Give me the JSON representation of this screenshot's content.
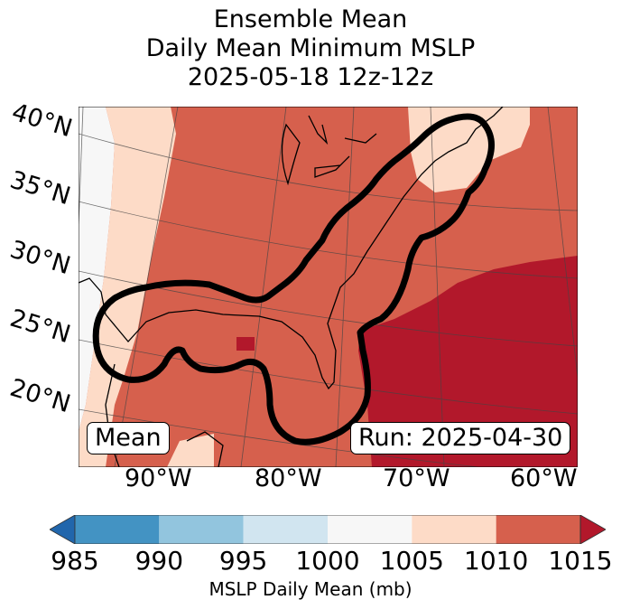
{
  "title": {
    "line1": "Ensemble Mean",
    "line2": "Daily Mean Minimum MSLP",
    "line3": "2025-05-18 12z-12z"
  },
  "map": {
    "lat_labels": [
      "40°N",
      "35°N",
      "30°N",
      "25°N",
      "20°N"
    ],
    "lon_labels": [
      "90°W",
      "80°W",
      "70°W",
      "60°W"
    ],
    "mean_label": "Mean",
    "run_label": "Run: 2025-04-30",
    "contour_color": "#000000",
    "region_description": "Eastern United States, Gulf of Mexico and western Atlantic; thick black contour outlines Gulf Coast and East Coast corridor"
  },
  "colorbar": {
    "label": "MSLP Daily Mean (mb)",
    "ticks": [
      "985",
      "990",
      "995",
      "1000",
      "1005",
      "1010",
      "1015"
    ],
    "bins": [
      {
        "range": "<985",
        "color": "#2166ac"
      },
      {
        "range": "985-990",
        "color": "#4393c3"
      },
      {
        "range": "990-995",
        "color": "#92c5de"
      },
      {
        "range": "995-1000",
        "color": "#d1e5f0"
      },
      {
        "range": "1000-1005",
        "color": "#f7f7f7"
      },
      {
        "range": "1005-1010",
        "color": "#fddbc7"
      },
      {
        "range": "1010-1015",
        "color": "#d6604d"
      },
      {
        "range": ">1015",
        "color": "#b2182b"
      }
    ]
  },
  "chart_data": {
    "type": "heatmap",
    "title": "Ensemble Mean / Daily Mean Minimum MSLP / 2025-05-18 12z-12z",
    "colorbar_label": "MSLP Daily Mean (mb)",
    "levels": [
      985,
      990,
      995,
      1000,
      1005,
      1010,
      1015
    ],
    "extend": "both",
    "regions": [
      {
        "area": "far west (Plains / west Texas)",
        "range": "1000-1005"
      },
      {
        "area": "western band",
        "range": "1005-1010"
      },
      {
        "area": "central & eastern US, Gulf of Mexico",
        "range": "1010-1015"
      },
      {
        "area": "New England / Maritimes",
        "range": "1005-1010"
      },
      {
        "area": "western Atlantic southeast of Carolinas",
        "range": ">1015"
      },
      {
        "area": "small patch central Gulf",
        "range": ">1015"
      }
    ],
    "lat_ticks": [
      "20°N",
      "25°N",
      "30°N",
      "35°N",
      "40°N"
    ],
    "lon_ticks": [
      "90°W",
      "80°W",
      "70°W",
      "60°W"
    ],
    "annotations": [
      "Mean",
      "Run: 2025-04-30"
    ]
  }
}
